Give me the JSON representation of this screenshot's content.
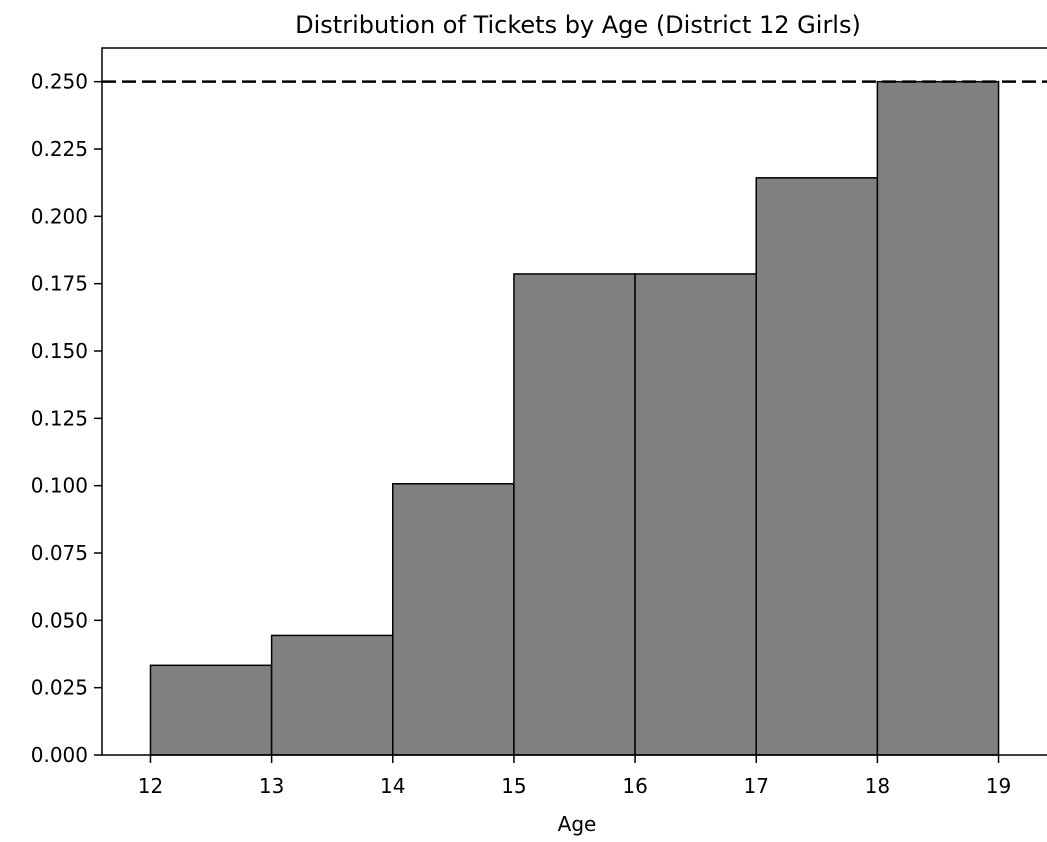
{
  "chart_data": {
    "type": "bar",
    "title": "Distribution of Tickets by Age (District 12 Girls)",
    "xlabel": "Age",
    "ylabel": "",
    "bin_edges": [
      12,
      13,
      14,
      15,
      16,
      17,
      18,
      19
    ],
    "values": [
      0.0333,
      0.0444,
      0.1007,
      0.1786,
      0.1786,
      0.2143,
      0.25
    ],
    "xlim": [
      11.6,
      19.4
    ],
    "ylim": [
      0.0,
      0.2625
    ],
    "x_ticks": [
      12,
      13,
      14,
      15,
      16,
      17,
      18,
      19
    ],
    "x_tick_labels": [
      "12",
      "13",
      "14",
      "15",
      "16",
      "17",
      "18",
      "19"
    ],
    "y_ticks": [
      0.0,
      0.025,
      0.05,
      0.075,
      0.1,
      0.125,
      0.15,
      0.175,
      0.2,
      0.225,
      0.25
    ],
    "y_tick_labels": [
      "0.000",
      "0.025",
      "0.050",
      "0.075",
      "0.100",
      "0.125",
      "0.150",
      "0.175",
      "0.200",
      "0.225",
      "0.250"
    ],
    "reference_line": {
      "y": 0.25,
      "style": "dashed",
      "color": "#000000"
    },
    "bar_color": "#808080",
    "bar_edge_color": "#000000",
    "grid": false,
    "legend": "none"
  }
}
